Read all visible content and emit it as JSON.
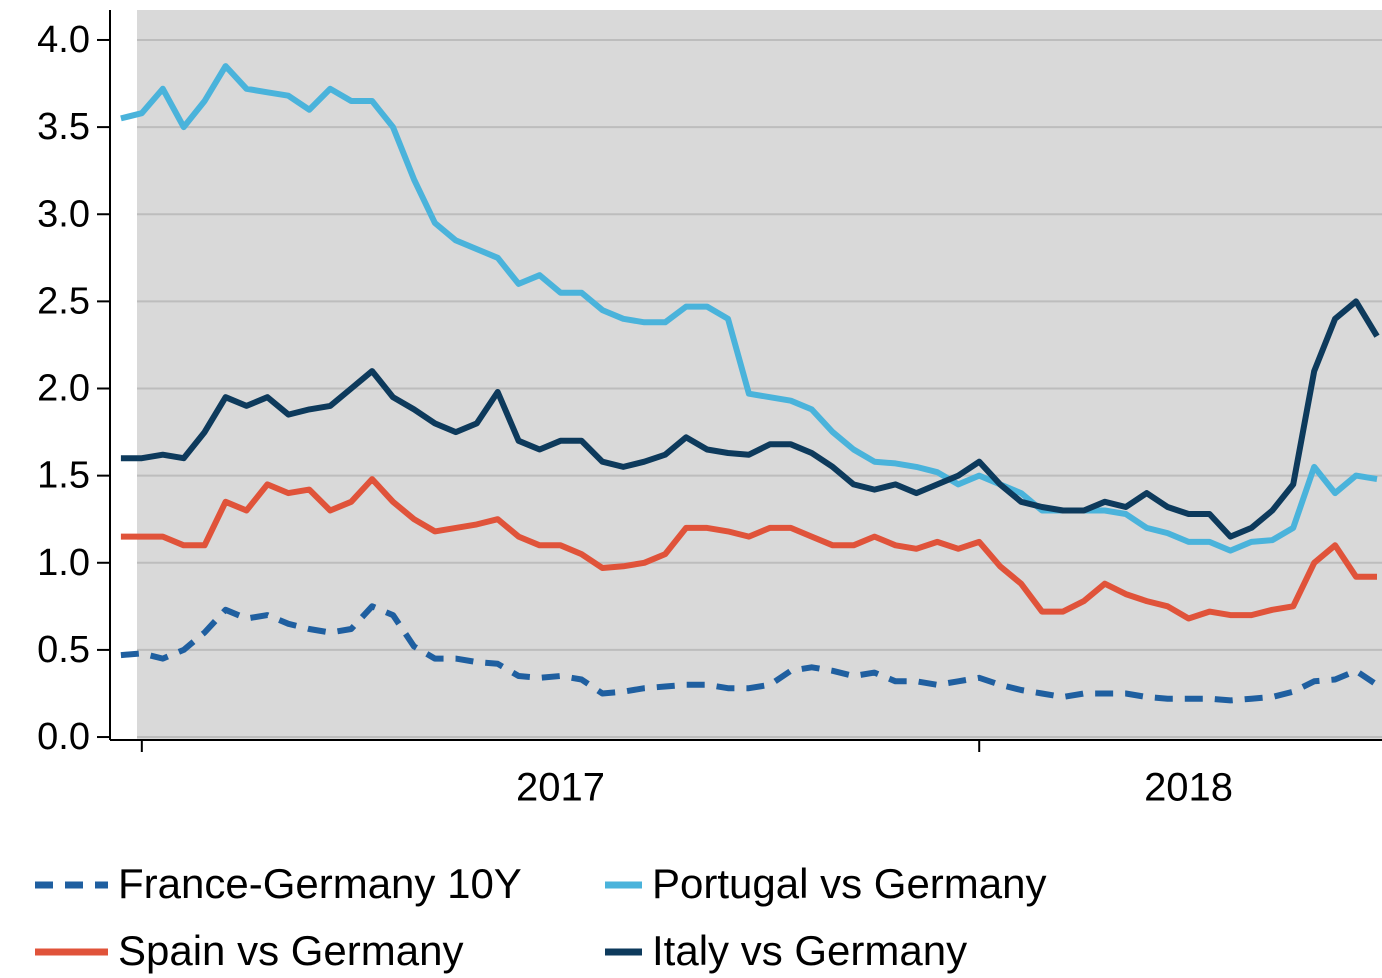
{
  "chart_data": {
    "type": "line",
    "x": [
      2016.975,
      2017.0,
      2017.025,
      2017.05,
      2017.075,
      2017.1,
      2017.125,
      2017.15,
      2017.175,
      2017.2,
      2017.225,
      2017.25,
      2017.275,
      2017.3,
      2017.325,
      2017.35,
      2017.375,
      2017.4,
      2017.425,
      2017.45,
      2017.475,
      2017.5,
      2017.525,
      2017.55,
      2017.575,
      2017.6,
      2017.625,
      2017.65,
      2017.675,
      2017.7,
      2017.725,
      2017.75,
      2017.775,
      2017.8,
      2017.825,
      2017.85,
      2017.875,
      2017.9,
      2017.925,
      2017.95,
      2017.975,
      2018.0,
      2018.025,
      2018.05,
      2018.075,
      2018.1,
      2018.125,
      2018.15,
      2018.175,
      2018.2,
      2018.225,
      2018.25,
      2018.275,
      2018.3,
      2018.325,
      2018.35,
      2018.375,
      2018.4,
      2018.425,
      2018.45,
      2018.475
    ],
    "series": [
      {
        "name": "France-Germany 10Y",
        "color": "#1f5fa0",
        "style": "dashed",
        "values": [
          0.47,
          0.48,
          0.45,
          0.5,
          0.6,
          0.73,
          0.68,
          0.7,
          0.65,
          0.62,
          0.6,
          0.62,
          0.75,
          0.7,
          0.52,
          0.45,
          0.45,
          0.43,
          0.42,
          0.35,
          0.34,
          0.35,
          0.33,
          0.25,
          0.26,
          0.28,
          0.29,
          0.3,
          0.3,
          0.28,
          0.28,
          0.3,
          0.38,
          0.4,
          0.38,
          0.35,
          0.37,
          0.32,
          0.32,
          0.3,
          0.32,
          0.34,
          0.3,
          0.27,
          0.25,
          0.23,
          0.25,
          0.25,
          0.25,
          0.23,
          0.22,
          0.22,
          0.22,
          0.21,
          0.22,
          0.23,
          0.26,
          0.32,
          0.33,
          0.38,
          0.3
        ]
      },
      {
        "name": "Portugal vs Germany",
        "color": "#4ab3db",
        "style": "solid",
        "values": [
          3.55,
          3.58,
          3.72,
          3.5,
          3.65,
          3.85,
          3.72,
          3.7,
          3.68,
          3.6,
          3.72,
          3.65,
          3.65,
          3.5,
          3.2,
          2.95,
          2.85,
          2.8,
          2.75,
          2.6,
          2.65,
          2.55,
          2.55,
          2.45,
          2.4,
          2.38,
          2.38,
          2.47,
          2.47,
          2.4,
          1.97,
          1.95,
          1.93,
          1.88,
          1.75,
          1.65,
          1.58,
          1.57,
          1.55,
          1.52,
          1.45,
          1.5,
          1.45,
          1.4,
          1.3,
          1.3,
          1.3,
          1.3,
          1.28,
          1.2,
          1.17,
          1.12,
          1.12,
          1.07,
          1.12,
          1.13,
          1.2,
          1.55,
          1.4,
          1.5,
          1.48
        ]
      },
      {
        "name": "Spain vs Germany",
        "color": "#e0533a",
        "style": "solid",
        "values": [
          1.15,
          1.15,
          1.15,
          1.1,
          1.1,
          1.35,
          1.3,
          1.45,
          1.4,
          1.42,
          1.3,
          1.35,
          1.48,
          1.35,
          1.25,
          1.18,
          1.2,
          1.22,
          1.25,
          1.15,
          1.1,
          1.1,
          1.05,
          0.97,
          0.98,
          1.0,
          1.05,
          1.2,
          1.2,
          1.18,
          1.15,
          1.2,
          1.2,
          1.15,
          1.1,
          1.1,
          1.15,
          1.1,
          1.08,
          1.12,
          1.08,
          1.12,
          0.98,
          0.88,
          0.72,
          0.72,
          0.78,
          0.88,
          0.82,
          0.78,
          0.75,
          0.68,
          0.72,
          0.7,
          0.7,
          0.73,
          0.75,
          1.0,
          1.1,
          0.92,
          0.92
        ]
      },
      {
        "name": "Italy vs Germany",
        "color": "#0d3a5c",
        "style": "solid",
        "values": [
          1.6,
          1.6,
          1.62,
          1.6,
          1.75,
          1.95,
          1.9,
          1.95,
          1.85,
          1.88,
          1.9,
          2.0,
          2.1,
          1.95,
          1.88,
          1.8,
          1.75,
          1.8,
          1.98,
          1.7,
          1.65,
          1.7,
          1.7,
          1.58,
          1.55,
          1.58,
          1.62,
          1.72,
          1.65,
          1.63,
          1.62,
          1.68,
          1.68,
          1.63,
          1.55,
          1.45,
          1.42,
          1.45,
          1.4,
          1.45,
          1.5,
          1.58,
          1.45,
          1.35,
          1.32,
          1.3,
          1.3,
          1.35,
          1.32,
          1.4,
          1.32,
          1.28,
          1.28,
          1.15,
          1.2,
          1.3,
          1.45,
          2.1,
          2.4,
          2.5,
          2.3
        ]
      }
    ],
    "xlim": [
      2016.962,
      2018.481
    ],
    "xticks": [
      2017,
      2018
    ],
    "xlabels": [
      {
        "value": 2017.5,
        "label": "2017"
      },
      {
        "value": 2018.25,
        "label": "2018"
      }
    ],
    "ylim": [
      -0.017,
      4.172
    ],
    "yticks": [
      {
        "value": 0,
        "label": "0.0"
      },
      0.5,
      {
        "value": 1,
        "label": "1.0"
      },
      1.5,
      {
        "value": 2,
        "label": "2.0"
      },
      2.5,
      {
        "value": 3,
        "label": "3.0"
      },
      3.5,
      {
        "value": 4,
        "label": "4.0"
      }
    ],
    "grid": true
  }
}
